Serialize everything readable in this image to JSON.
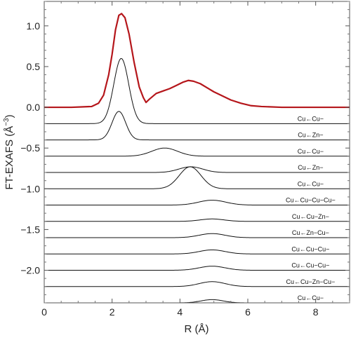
{
  "chart_data": {
    "type": "line",
    "xlabel": "R (Å)",
    "ylabel": "FT-EXAFS (Å",
    "ylabel_sup": "−3",
    "ylabel_close": ")",
    "xlim": [
      0,
      9
    ],
    "ylim": [
      -2.4,
      1.3
    ],
    "xticks": [
      0,
      2,
      4,
      6,
      8
    ],
    "yticks": [
      {
        "value": 1.0,
        "label": "1.0"
      },
      {
        "value": 0.5,
        "label": "0.5"
      },
      {
        "value": 0.0,
        "label": "0.0"
      },
      {
        "value": -0.5,
        "label": "−0.5"
      },
      {
        "value": -1.0,
        "label": "−1.0"
      },
      {
        "value": -1.5,
        "label": "−1.5"
      },
      {
        "value": -2.0,
        "label": "−2.0"
      }
    ],
    "grid": false,
    "total": {
      "color": "#b5161b",
      "points": [
        [
          0,
          0
        ],
        [
          0.4,
          0
        ],
        [
          0.8,
          0
        ],
        [
          1.1,
          0.005
        ],
        [
          1.4,
          0.01
        ],
        [
          1.6,
          0.05
        ],
        [
          1.75,
          0.15
        ],
        [
          1.9,
          0.4
        ],
        [
          2.0,
          0.65
        ],
        [
          2.1,
          0.95
        ],
        [
          2.2,
          1.13
        ],
        [
          2.28,
          1.15
        ],
        [
          2.38,
          1.1
        ],
        [
          2.5,
          0.9
        ],
        [
          2.65,
          0.55
        ],
        [
          2.8,
          0.25
        ],
        [
          2.92,
          0.12
        ],
        [
          3.0,
          0.06
        ],
        [
          3.1,
          0.1
        ],
        [
          3.3,
          0.17
        ],
        [
          3.5,
          0.2
        ],
        [
          3.7,
          0.23
        ],
        [
          3.9,
          0.27
        ],
        [
          4.1,
          0.31
        ],
        [
          4.25,
          0.33
        ],
        [
          4.4,
          0.32
        ],
        [
          4.6,
          0.29
        ],
        [
          4.8,
          0.24
        ],
        [
          5.0,
          0.19
        ],
        [
          5.2,
          0.15
        ],
        [
          5.5,
          0.09
        ],
        [
          5.8,
          0.05
        ],
        [
          6.1,
          0.02
        ],
        [
          6.4,
          0.01
        ],
        [
          7.0,
          0.0
        ],
        [
          9.0,
          0.0
        ]
      ]
    },
    "series": [
      {
        "label": "Cu←Cu−",
        "baseline": -0.2,
        "center": 2.27,
        "height": 0.8,
        "width": 0.22
      },
      {
        "label": "Cu←Zn−",
        "baseline": -0.4,
        "center": 2.2,
        "height": 0.35,
        "width": 0.2
      },
      {
        "label": "Cu←Cu−",
        "baseline": -0.6,
        "center": 3.55,
        "height": 0.1,
        "width": 0.38
      },
      {
        "label": "Cu←Zn−",
        "baseline": -0.8,
        "center": 4.32,
        "height": 0.07,
        "width": 0.35
      },
      {
        "label": "Cu←Cu−",
        "baseline": -1.0,
        "center": 4.3,
        "height": 0.27,
        "width": 0.32
      },
      {
        "label": "Cu←Cu−Cu−Cu−",
        "baseline": -1.2,
        "center": 4.95,
        "height": 0.06,
        "width": 0.4
      },
      {
        "label": "Cu←Cu−Zn−",
        "baseline": -1.4,
        "center": 4.95,
        "height": 0.03,
        "width": 0.35
      },
      {
        "label": "Cu←Zn−Cu−",
        "baseline": -1.6,
        "center": 4.95,
        "height": 0.05,
        "width": 0.38
      },
      {
        "label": "Cu←Cu−Cu−",
        "baseline": -1.8,
        "center": 4.95,
        "height": 0.05,
        "width": 0.38
      },
      {
        "label": "Cu←Cu−Cu−",
        "baseline": -2.0,
        "center": 4.95,
        "height": 0.05,
        "width": 0.38
      },
      {
        "label": "Cu←Cu−Zn−Cu−",
        "baseline": -2.2,
        "center": 4.95,
        "height": 0.06,
        "width": 0.38
      },
      {
        "label": "Cu←Cu−",
        "baseline": -2.4,
        "center": 4.95,
        "height": 0.04,
        "width": 0.32
      }
    ]
  }
}
